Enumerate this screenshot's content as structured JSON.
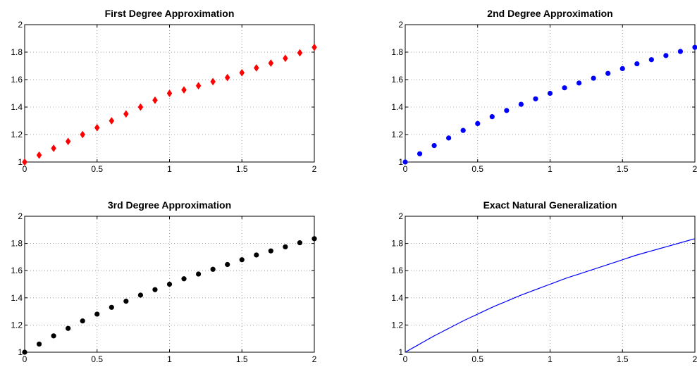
{
  "chart_data": [
    {
      "type": "scatter",
      "title": "First Degree Approximation",
      "xlabel": "",
      "ylabel": "",
      "xlim": [
        0,
        2
      ],
      "ylim": [
        1,
        2
      ],
      "xticks": [
        "0",
        "0.5",
        "1",
        "1.5",
        "2"
      ],
      "yticks": [
        "1",
        "1.2",
        "1.4",
        "1.6",
        "1.8",
        "2"
      ],
      "grid": true,
      "marker": "diamond",
      "color": "#ff0000",
      "x": [
        0,
        0.1,
        0.2,
        0.3,
        0.4,
        0.5,
        0.6,
        0.7,
        0.8,
        0.9,
        1.0,
        1.1,
        1.2,
        1.3,
        1.4,
        1.5,
        1.6,
        1.7,
        1.8,
        1.9,
        2.0
      ],
      "y": [
        1.0,
        1.05,
        1.1,
        1.15,
        1.2,
        1.25,
        1.3,
        1.35,
        1.4,
        1.45,
        1.5,
        1.525,
        1.555,
        1.585,
        1.615,
        1.65,
        1.685,
        1.72,
        1.755,
        1.795,
        1.835
      ]
    },
    {
      "type": "scatter",
      "title": "2nd Degree Approximation",
      "xlabel": "",
      "ylabel": "",
      "xlim": [
        0,
        2
      ],
      "ylim": [
        1,
        2
      ],
      "xticks": [
        "0",
        "0.5",
        "1",
        "1.5",
        "2"
      ],
      "yticks": [
        "1",
        "1.2",
        "1.4",
        "1.6",
        "1.8",
        "2"
      ],
      "grid": true,
      "marker": "circle",
      "color": "#0000ff",
      "x": [
        0,
        0.1,
        0.2,
        0.3,
        0.4,
        0.5,
        0.6,
        0.7,
        0.8,
        0.9,
        1.0,
        1.1,
        1.2,
        1.3,
        1.4,
        1.5,
        1.6,
        1.7,
        1.8,
        1.9,
        2.0
      ],
      "y": [
        1.0,
        1.06,
        1.12,
        1.175,
        1.23,
        1.28,
        1.33,
        1.375,
        1.42,
        1.46,
        1.5,
        1.54,
        1.575,
        1.61,
        1.645,
        1.68,
        1.715,
        1.745,
        1.775,
        1.805,
        1.835
      ]
    },
    {
      "type": "scatter",
      "title": "3rd Degree Approximation",
      "xlabel": "",
      "ylabel": "",
      "xlim": [
        0,
        2
      ],
      "ylim": [
        1,
        2
      ],
      "xticks": [
        "0",
        "0.5",
        "1",
        "1.5",
        "2"
      ],
      "yticks": [
        "1",
        "1.2",
        "1.4",
        "1.6",
        "1.8",
        "2"
      ],
      "grid": true,
      "marker": "circle",
      "color": "#000000",
      "x": [
        0,
        0.1,
        0.2,
        0.3,
        0.4,
        0.5,
        0.6,
        0.7,
        0.8,
        0.9,
        1.0,
        1.1,
        1.2,
        1.3,
        1.4,
        1.5,
        1.6,
        1.7,
        1.8,
        1.9,
        2.0
      ],
      "y": [
        1.0,
        1.06,
        1.12,
        1.175,
        1.23,
        1.28,
        1.33,
        1.375,
        1.42,
        1.46,
        1.5,
        1.54,
        1.575,
        1.61,
        1.645,
        1.68,
        1.715,
        1.745,
        1.775,
        1.805,
        1.835
      ]
    },
    {
      "type": "line",
      "title": "Exact Natural Generalization",
      "xlabel": "",
      "ylabel": "",
      "xlim": [
        0,
        2
      ],
      "ylim": [
        1,
        2
      ],
      "xticks": [
        "0",
        "0.5",
        "1",
        "1.5",
        "2"
      ],
      "yticks": [
        "1",
        "1.2",
        "1.4",
        "1.6",
        "1.8",
        "2"
      ],
      "grid": true,
      "color": "#0000ff",
      "x": [
        0,
        0.1,
        0.2,
        0.3,
        0.4,
        0.5,
        0.6,
        0.7,
        0.8,
        0.9,
        1.0,
        1.1,
        1.2,
        1.3,
        1.4,
        1.5,
        1.6,
        1.7,
        1.8,
        1.9,
        2.0
      ],
      "y": [
        1.0,
        1.06,
        1.12,
        1.175,
        1.23,
        1.28,
        1.33,
        1.375,
        1.42,
        1.46,
        1.5,
        1.54,
        1.575,
        1.61,
        1.645,
        1.68,
        1.715,
        1.745,
        1.775,
        1.805,
        1.835
      ]
    }
  ]
}
